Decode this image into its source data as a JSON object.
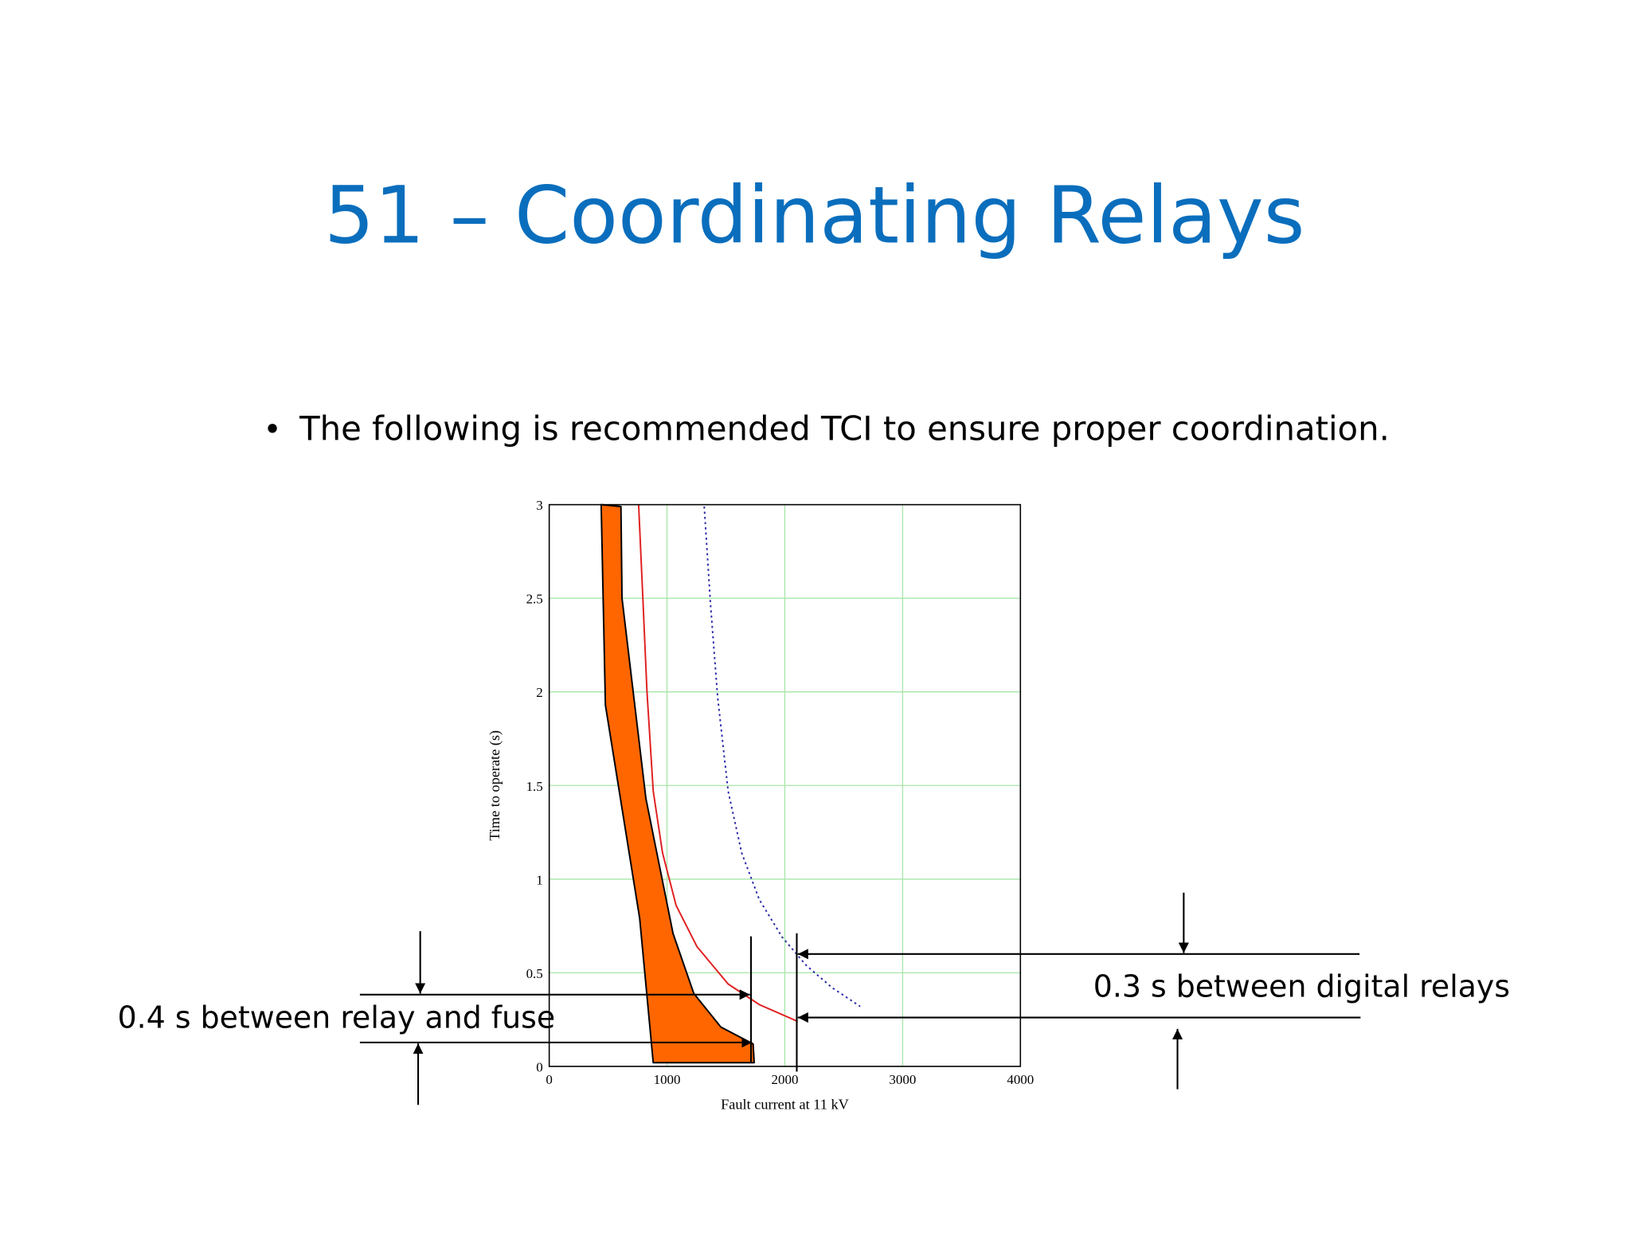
{
  "title": "51 – Coordinating Relays",
  "bullet": "The following is recommended TCI to ensure proper coordination.",
  "chart_data": {
    "type": "line",
    "xlabel": "Fault current at 11 kV",
    "ylabel": "Time to operate (s)",
    "xlim": [
      0,
      4000
    ],
    "xticks": [
      0,
      1000,
      2000,
      3000,
      4000
    ],
    "ylim": [
      0,
      3
    ],
    "yticks": [
      0,
      0.5,
      1,
      1.5,
      2,
      2.5,
      3
    ],
    "grid": true,
    "grid_color": "#a8e6a8",
    "series": [
      {
        "color": "#ff6600",
        "fill": true,
        "x": [
          441,
          609,
          618,
          821,
          1051,
          1227,
          1457,
          1731,
          1740,
          883,
          768,
          477
        ],
        "values": [
          3.0,
          2.99,
          2.5,
          1.43,
          0.71,
          0.39,
          0.21,
          0.12,
          0.02,
          0.02,
          0.79,
          1.93
        ]
      },
      {
        "color": "#e02020",
        "line_style": "solid",
        "x": [
          759,
          795,
          830,
          883,
          962,
          1077,
          1254,
          1519,
          1784,
          2110
        ],
        "values": [
          3.0,
          2.5,
          2.0,
          1.47,
          1.14,
          0.86,
          0.64,
          0.44,
          0.33,
          0.24
        ]
      },
      {
        "color": "#2a2aa8",
        "line_style": "dotted",
        "x": [
          1316,
          1369,
          1430,
          1519,
          1634,
          1784,
          1978,
          2181,
          2402,
          2640
        ],
        "values": [
          2.99,
          2.47,
          1.97,
          1.47,
          1.14,
          0.89,
          0.69,
          0.54,
          0.42,
          0.32
        ]
      }
    ],
    "annotations": [
      "0.4 s between relay and fuse",
      "0.3 s between digital relays"
    ]
  }
}
